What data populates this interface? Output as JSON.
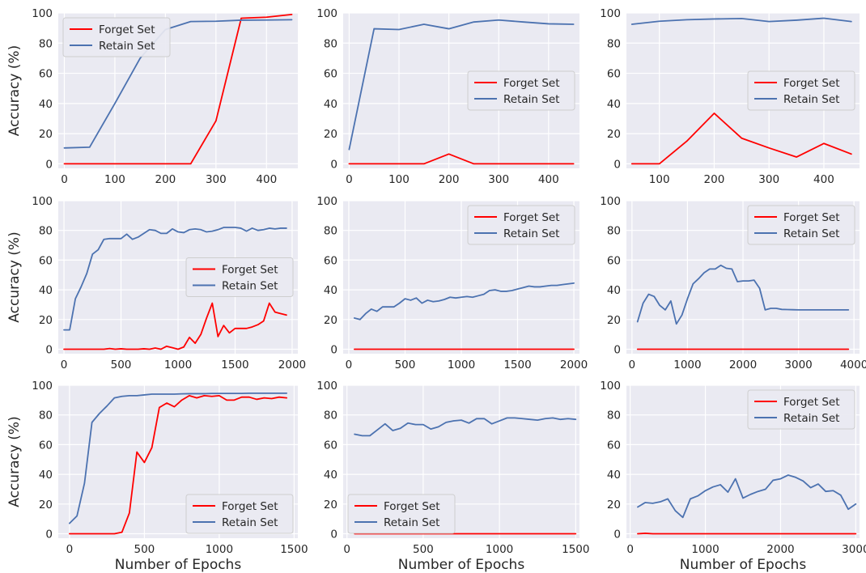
{
  "figure": {
    "ylabel": "Accuracy (%)",
    "xlabel": "Number of Epochs",
    "legend": [
      "Forget Set",
      "Retain Set"
    ],
    "colors": {
      "forget": "#ff0000",
      "retain": "#4c72b0",
      "background": "#eaeaf2",
      "grid": "#ffffff"
    }
  },
  "chart_data": [
    {
      "type": "line",
      "row": 0,
      "col": 0,
      "legend_position": "upper-left",
      "xlim": [
        -12,
        462
      ],
      "ylim": [
        -3,
        100
      ],
      "xticks": [
        0,
        100,
        200,
        300,
        400
      ],
      "yticks": [
        0,
        20,
        40,
        60,
        80,
        100
      ],
      "ylabel": "Accuracy (%)",
      "xlabel": "",
      "series": [
        {
          "name": "Forget Set",
          "x": [
            0,
            50,
            100,
            150,
            200,
            250,
            300,
            350,
            400,
            450
          ],
          "y": [
            0,
            0,
            0,
            0,
            0,
            0,
            28.5,
            96.5,
            97.2,
            99
          ]
        },
        {
          "name": "Retain Set",
          "x": [
            0,
            50,
            100,
            150,
            200,
            250,
            300,
            350,
            400,
            450
          ],
          "y": [
            10.5,
            11,
            40,
            70,
            89,
            94.3,
            94.5,
            95.2,
            95.3,
            95.5
          ]
        }
      ]
    },
    {
      "type": "line",
      "row": 0,
      "col": 1,
      "legend_position": "center-right",
      "xlim": [
        -12,
        462
      ],
      "ylim": [
        -3,
        100
      ],
      "xticks": [
        0,
        100,
        200,
        300,
        400
      ],
      "yticks": [
        0,
        20,
        40,
        60,
        80,
        100
      ],
      "ylabel": "",
      "xlabel": "",
      "series": [
        {
          "name": "Forget Set",
          "x": [
            0,
            50,
            100,
            150,
            200,
            250,
            300,
            350,
            400,
            450
          ],
          "y": [
            0,
            0,
            0,
            0,
            6.5,
            0,
            0,
            0,
            0,
            0
          ]
        },
        {
          "name": "Retain Set",
          "x": [
            0,
            50,
            100,
            150,
            200,
            250,
            300,
            350,
            400,
            450
          ],
          "y": [
            9.5,
            89.5,
            89,
            92.5,
            89.5,
            94,
            95.3,
            94,
            92.8,
            92.5
          ]
        }
      ]
    },
    {
      "type": "line",
      "row": 0,
      "col": 2,
      "legend_position": "center-right",
      "xlim": [
        40,
        465
      ],
      "ylim": [
        -3,
        100
      ],
      "xticks": [
        100,
        200,
        300,
        400
      ],
      "yticks": [
        0,
        20,
        40,
        60,
        80,
        100
      ],
      "ylabel": "",
      "xlabel": "",
      "series": [
        {
          "name": "Forget Set",
          "x": [
            50,
            100,
            150,
            200,
            250,
            300,
            350,
            400,
            450
          ],
          "y": [
            0,
            0,
            15,
            33.5,
            17,
            10.5,
            4.5,
            13.5,
            6.5
          ]
        },
        {
          "name": "Retain Set",
          "x": [
            50,
            100,
            150,
            200,
            250,
            300,
            350,
            400,
            450
          ],
          "y": [
            92.5,
            94.5,
            95.5,
            96,
            96.3,
            94.3,
            95.2,
            96.5,
            94.3
          ]
        }
      ]
    },
    {
      "type": "line",
      "row": 1,
      "col": 0,
      "legend_position": "center-right",
      "xlim": [
        -50,
        2050
      ],
      "ylim": [
        -3,
        100
      ],
      "xticks": [
        0,
        500,
        1000,
        1500,
        2000
      ],
      "yticks": [
        0,
        20,
        40,
        60,
        80,
        100
      ],
      "ylabel": "Accuracy (%)",
      "xlabel": "",
      "series": [
        {
          "name": "Forget Set",
          "x": [
            0,
            50,
            100,
            150,
            200,
            250,
            300,
            350,
            400,
            450,
            500,
            550,
            600,
            650,
            700,
            750,
            800,
            850,
            900,
            950,
            1000,
            1050,
            1100,
            1150,
            1200,
            1250,
            1300,
            1350,
            1400,
            1450,
            1500,
            1550,
            1600,
            1650,
            1700,
            1750,
            1800,
            1850,
            1900,
            1950
          ],
          "y": [
            0,
            0,
            0,
            0,
            0,
            0,
            0,
            0,
            0.5,
            0,
            0.3,
            0,
            0,
            0,
            0.3,
            0,
            0.8,
            0,
            2,
            1,
            0,
            1.5,
            8,
            4,
            10,
            21,
            31,
            8.5,
            16,
            11,
            14,
            14,
            14,
            15,
            16.5,
            19,
            31,
            25,
            24,
            23
          ]
        },
        {
          "name": "Retain Set",
          "x": [
            0,
            50,
            100,
            150,
            200,
            250,
            300,
            350,
            400,
            450,
            500,
            550,
            600,
            650,
            700,
            750,
            800,
            850,
            900,
            950,
            1000,
            1050,
            1100,
            1150,
            1200,
            1250,
            1300,
            1350,
            1400,
            1450,
            1500,
            1550,
            1600,
            1650,
            1700,
            1750,
            1800,
            1850,
            1900,
            1950
          ],
          "y": [
            13,
            13,
            34,
            42,
            51,
            64,
            67,
            74,
            74.5,
            74.5,
            74.5,
            77.5,
            74,
            75.5,
            78,
            80.5,
            80,
            78,
            78,
            81,
            79,
            78.5,
            80.5,
            81,
            80.5,
            79,
            79.5,
            80.5,
            82,
            82,
            82,
            81.5,
            79.5,
            81.5,
            80,
            80.5,
            81.5,
            81,
            81.5,
            81.5
          ]
        }
      ]
    },
    {
      "type": "line",
      "row": 1,
      "col": 1,
      "legend_position": "upper-right",
      "xlim": [
        -50,
        2050
      ],
      "ylim": [
        -3,
        100
      ],
      "xticks": [
        0,
        500,
        1000,
        1500,
        2000
      ],
      "yticks": [
        0,
        20,
        40,
        60,
        80,
        100
      ],
      "ylabel": "",
      "xlabel": "",
      "series": [
        {
          "name": "Forget Set",
          "x": [
            50,
            2000
          ],
          "y": [
            0,
            0
          ]
        },
        {
          "name": "Retain Set",
          "x": [
            50,
            100,
            150,
            200,
            250,
            300,
            350,
            400,
            450,
            500,
            550,
            600,
            650,
            700,
            750,
            800,
            850,
            900,
            950,
            1000,
            1050,
            1100,
            1150,
            1200,
            1250,
            1300,
            1350,
            1400,
            1450,
            1500,
            1550,
            1600,
            1650,
            1700,
            1750,
            1800,
            1850,
            1900,
            1950,
            2000
          ],
          "y": [
            21,
            20,
            24,
            27,
            25.5,
            28.5,
            28.5,
            28.5,
            31,
            34,
            33,
            34.5,
            31,
            33,
            32,
            32.5,
            33.5,
            35,
            34.5,
            35,
            35.5,
            35,
            36,
            37,
            39.5,
            40,
            39,
            39,
            39.5,
            40.5,
            41.5,
            42.5,
            42,
            42,
            42.5,
            43,
            43,
            43.5,
            44,
            44.5
          ]
        }
      ]
    },
    {
      "type": "line",
      "row": 1,
      "col": 2,
      "legend_position": "upper-right",
      "xlim": [
        -100,
        4100
      ],
      "ylim": [
        -3,
        100
      ],
      "xticks": [
        0,
        1000,
        2000,
        3000,
        4000
      ],
      "yticks": [
        0,
        20,
        40,
        60,
        80,
        100
      ],
      "ylabel": "",
      "xlabel": "",
      "series": [
        {
          "name": "Forget Set",
          "x": [
            100,
            3900
          ],
          "y": [
            0,
            0
          ]
        },
        {
          "name": "Retain Set",
          "x": [
            100,
            200,
            300,
            400,
            500,
            600,
            700,
            800,
            900,
            1000,
            1100,
            1200,
            1300,
            1400,
            1500,
            1600,
            1700,
            1800,
            1900,
            2000,
            2100,
            2200,
            2300,
            2400,
            2500,
            2600,
            2700,
            2800,
            2900,
            3000,
            3100,
            3200,
            3300,
            3400,
            3500,
            3600,
            3700,
            3800,
            3900
          ],
          "y": [
            18.5,
            31,
            37,
            35.5,
            29.5,
            26.5,
            32.5,
            17,
            23,
            34,
            44,
            47.5,
            51.5,
            54,
            54,
            56.5,
            54.5,
            54,
            45.5,
            46,
            46,
            46.5,
            41,
            26.5,
            27.5,
            27.5,
            26.8,
            26.7,
            26.6,
            26.5,
            26.5,
            26.5,
            26.5,
            26.5,
            26.5,
            26.5,
            26.5,
            26.5,
            26.5
          ]
        }
      ]
    },
    {
      "type": "line",
      "row": 2,
      "col": 0,
      "legend_position": "lower-right",
      "xlim": [
        -75,
        1525
      ],
      "ylim": [
        -3,
        100
      ],
      "xticks": [
        0,
        500,
        1000,
        1500
      ],
      "yticks": [
        0,
        20,
        40,
        60,
        80,
        100
      ],
      "ylabel": "Accuracy (%)",
      "xlabel": "Number of Epochs",
      "series": [
        {
          "name": "Forget Set",
          "x": [
            0,
            50,
            100,
            150,
            200,
            250,
            300,
            350,
            400,
            450,
            500,
            550,
            600,
            650,
            700,
            750,
            800,
            850,
            900,
            950,
            1000,
            1050,
            1100,
            1150,
            1200,
            1250,
            1300,
            1350,
            1400,
            1450
          ],
          "y": [
            0,
            0,
            0,
            0,
            0,
            0,
            0,
            1,
            14,
            55,
            48,
            58,
            85,
            88,
            85.5,
            90,
            93,
            91.5,
            93,
            92.5,
            93,
            90,
            90,
            92,
            92,
            90.5,
            91.5,
            91,
            92,
            91.5
          ]
        },
        {
          "name": "Retain Set",
          "x": [
            0,
            50,
            100,
            150,
            200,
            250,
            300,
            350,
            400,
            450,
            500,
            550,
            600,
            650,
            700,
            750,
            800,
            850,
            900,
            950,
            1000,
            1050,
            1100,
            1150,
            1200,
            1250,
            1300,
            1350,
            1400,
            1450
          ],
          "y": [
            7,
            12,
            34,
            75,
            81,
            86,
            91.5,
            92.5,
            93,
            93,
            93.5,
            94,
            94,
            94,
            94,
            94.2,
            94.3,
            94.3,
            94.3,
            94.5,
            94.5,
            94.5,
            94.5,
            94.5,
            94.6,
            94.6,
            94.6,
            94.6,
            94.6,
            94.6
          ]
        }
      ]
    },
    {
      "type": "line",
      "row": 2,
      "col": 1,
      "legend_position": "lower-left",
      "xlim": [
        -25,
        1525
      ],
      "ylim": [
        -3,
        100
      ],
      "xticks": [
        0,
        500,
        1000,
        1500
      ],
      "yticks": [
        0,
        20,
        40,
        60,
        80,
        100
      ],
      "ylabel": "",
      "xlabel": "Number of Epochs",
      "series": [
        {
          "name": "Forget Set",
          "x": [
            50,
            1500
          ],
          "y": [
            0,
            0
          ]
        },
        {
          "name": "Retain Set",
          "x": [
            50,
            100,
            150,
            200,
            250,
            300,
            350,
            400,
            450,
            500,
            550,
            600,
            650,
            700,
            750,
            800,
            850,
            900,
            950,
            1000,
            1050,
            1100,
            1150,
            1200,
            1250,
            1300,
            1350,
            1400,
            1450,
            1500
          ],
          "y": [
            67,
            66,
            66,
            70,
            74,
            69.5,
            71,
            74.5,
            73.5,
            73.5,
            70.5,
            72,
            75,
            76,
            76.5,
            74.5,
            77.5,
            77.5,
            74,
            76,
            78,
            78,
            77.5,
            77,
            76.5,
            77.5,
            78,
            77,
            77.5,
            77
          ]
        }
      ]
    },
    {
      "type": "line",
      "row": 2,
      "col": 2,
      "legend_position": "upper-right",
      "xlim": [
        -50,
        3050
      ],
      "ylim": [
        -3,
        100
      ],
      "xticks": [
        0,
        1000,
        2000,
        3000
      ],
      "yticks": [
        0,
        20,
        40,
        60,
        80,
        100
      ],
      "ylabel": "",
      "xlabel": "Number of Epochs",
      "series": [
        {
          "name": "Forget Set",
          "x": [
            100,
            200,
            300,
            3000
          ],
          "y": [
            0,
            0.3,
            0,
            0
          ]
        },
        {
          "name": "Retain Set",
          "x": [
            100,
            200,
            300,
            400,
            500,
            600,
            700,
            800,
            900,
            1000,
            1100,
            1200,
            1300,
            1400,
            1500,
            1600,
            1700,
            1800,
            1900,
            2000,
            2100,
            2200,
            2300,
            2400,
            2500,
            2600,
            2700,
            2800,
            2900,
            3000
          ],
          "y": [
            18,
            21,
            20.5,
            21.5,
            23.5,
            15.5,
            11,
            23.5,
            25.5,
            29,
            31.5,
            33,
            28,
            37,
            24,
            26.5,
            28.5,
            30,
            36,
            37,
            39.5,
            38,
            35.5,
            31,
            33.5,
            28.5,
            29,
            26,
            16.5,
            20
          ]
        }
      ]
    }
  ]
}
